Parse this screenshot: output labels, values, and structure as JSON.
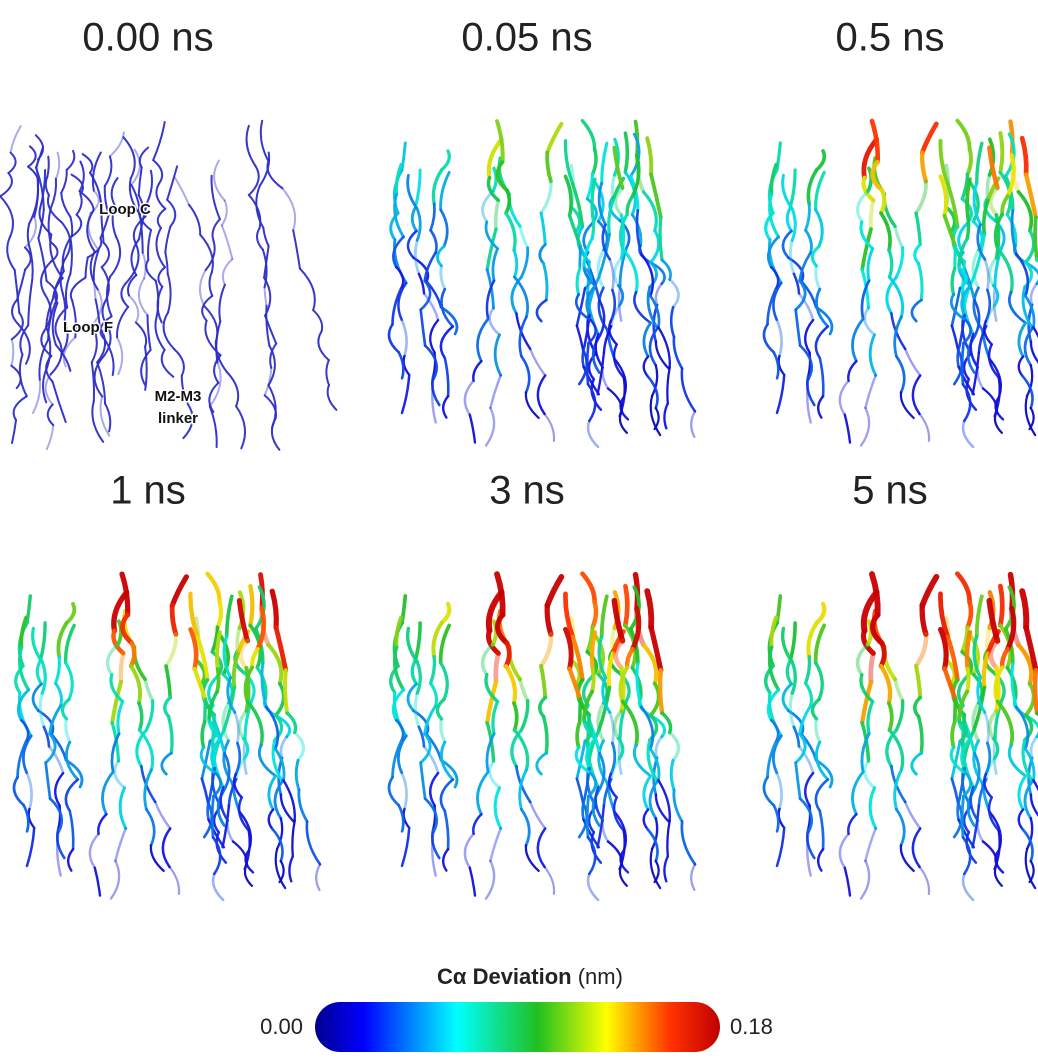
{
  "panels": [
    {
      "title": "0.00 ns"
    },
    {
      "title": "0.05 ns"
    },
    {
      "title": "0.5 ns"
    },
    {
      "title": "1 ns"
    },
    {
      "title": "3 ns"
    },
    {
      "title": "5 ns"
    }
  ],
  "annotations": [
    "Loop C",
    "Loop F",
    "M2-M3",
    "linker"
  ],
  "colorbar": {
    "title": "Cα Deviation",
    "unit": "(nm)",
    "min": "0.00",
    "max": "0.18"
  }
}
